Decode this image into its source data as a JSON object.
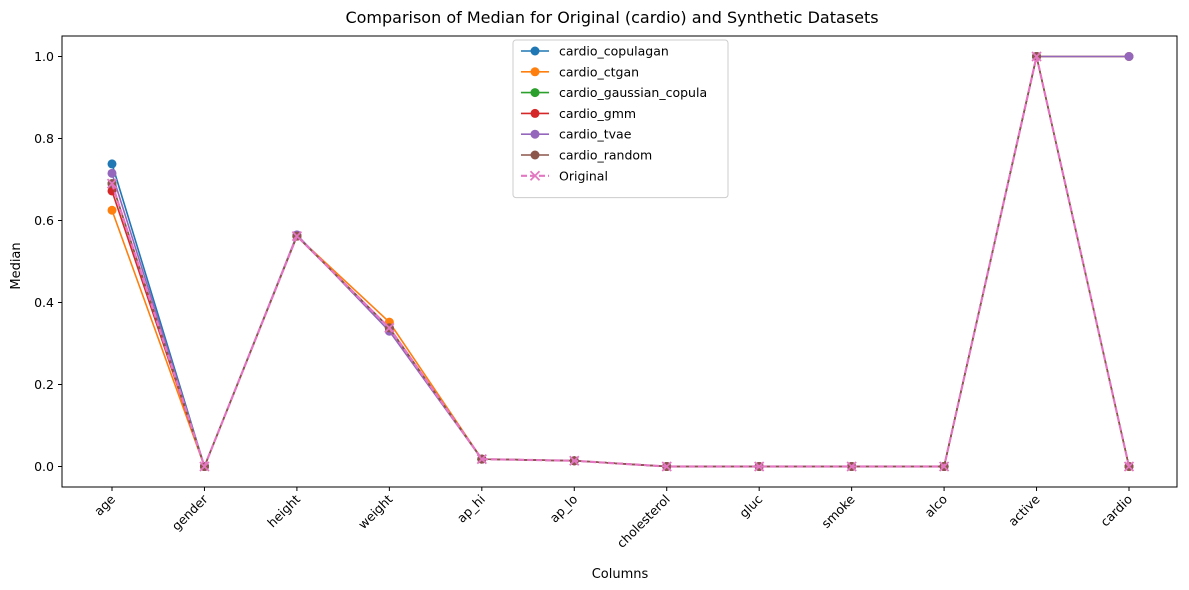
{
  "chart_data": {
    "type": "line",
    "title": "Comparison of Median for Original (cardio) and Synthetic Datasets",
    "xlabel": "Columns",
    "ylabel": "Median",
    "categories": [
      "age",
      "gender",
      "height",
      "weight",
      "ap_hi",
      "ap_lo",
      "cholesterol",
      "gluc",
      "smoke",
      "alco",
      "active",
      "cardio"
    ],
    "ylim": [
      -0.05,
      1.05
    ],
    "yticks": [
      0.0,
      0.2,
      0.4,
      0.6,
      0.8,
      1.0
    ],
    "grid": false,
    "legend_position": "top-center",
    "series": [
      {
        "name": "cardio_copulagan",
        "color": "#1f77b4",
        "marker": "circle",
        "linestyle": "solid",
        "values": [
          0.738,
          0.0,
          0.562,
          0.338,
          0.018,
          0.014,
          0.0,
          0.0,
          0.0,
          0.0,
          1.0,
          1.0
        ]
      },
      {
        "name": "cardio_ctgan",
        "color": "#ff7f0e",
        "marker": "circle",
        "linestyle": "solid",
        "values": [
          0.625,
          0.0,
          0.562,
          0.352,
          0.018,
          0.014,
          0.0,
          0.0,
          0.0,
          0.0,
          1.0,
          1.0
        ]
      },
      {
        "name": "cardio_gaussian_copula",
        "color": "#2ca02c",
        "marker": "circle",
        "linestyle": "solid",
        "values": [
          0.69,
          0.0,
          0.562,
          0.338,
          0.018,
          0.014,
          0.0,
          0.0,
          0.0,
          0.0,
          1.0,
          0.0
        ]
      },
      {
        "name": "cardio_gmm",
        "color": "#d62728",
        "marker": "circle",
        "linestyle": "solid",
        "values": [
          0.672,
          0.0,
          0.562,
          0.338,
          0.018,
          0.014,
          0.0,
          0.0,
          0.0,
          0.0,
          1.0,
          0.0
        ]
      },
      {
        "name": "cardio_tvae",
        "color": "#9467bd",
        "marker": "circle",
        "linestyle": "solid",
        "values": [
          0.715,
          0.0,
          0.565,
          0.33,
          0.018,
          0.014,
          0.0,
          0.0,
          0.0,
          0.0,
          1.0,
          1.0
        ]
      },
      {
        "name": "cardio_random",
        "color": "#8c564b",
        "marker": "circle",
        "linestyle": "solid",
        "values": [
          0.69,
          0.0,
          0.562,
          0.338,
          0.018,
          0.014,
          0.0,
          0.0,
          0.0,
          0.0,
          1.0,
          0.0
        ]
      },
      {
        "name": "Original",
        "color": "#e377c2",
        "marker": "x",
        "linestyle": "dashed",
        "values": [
          0.69,
          0.0,
          0.562,
          0.338,
          0.018,
          0.014,
          0.0,
          0.0,
          0.0,
          0.0,
          1.0,
          0.0
        ]
      }
    ]
  }
}
